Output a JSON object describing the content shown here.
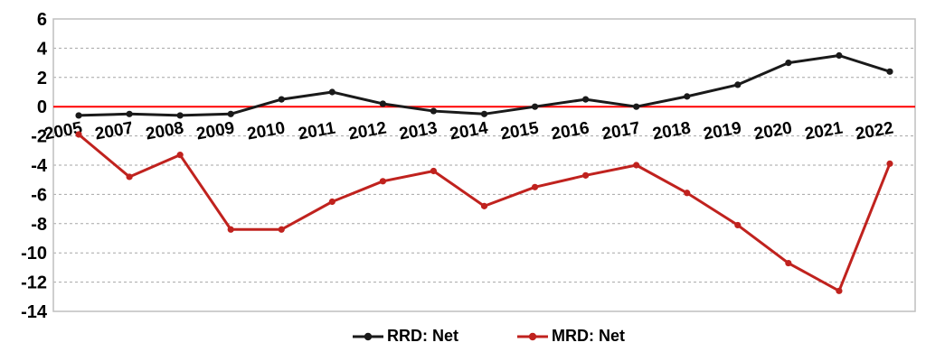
{
  "chart_data": {
    "type": "line",
    "title": "",
    "xlabel": "",
    "ylabel": "",
    "categories": [
      "2005",
      "2007",
      "2008",
      "2009",
      "2010",
      "2011",
      "2012",
      "2013",
      "2014",
      "2015",
      "2016",
      "2017",
      "2018",
      "2019",
      "2020",
      "2021",
      "2022"
    ],
    "series": [
      {
        "name": "RRD: Net",
        "color": "#1a1a1a",
        "values": [
          -0.6,
          -0.5,
          -0.6,
          -0.5,
          0.5,
          1.0,
          0.2,
          -0.3,
          -0.5,
          0.0,
          0.5,
          0.0,
          0.7,
          1.5,
          3.0,
          3.5,
          2.4
        ]
      },
      {
        "name": "MRD: Net",
        "color": "#c0221e",
        "values": [
          -1.9,
          -4.8,
          -3.3,
          -8.4,
          -8.4,
          -6.5,
          -5.1,
          -4.4,
          -6.8,
          -5.5,
          -4.7,
          -4.0,
          -5.9,
          -8.1,
          -10.7,
          -12.6,
          -3.9
        ]
      }
    ],
    "ylim": [
      -14,
      6
    ],
    "yticks": [
      6,
      4,
      2,
      0,
      -2,
      -4,
      -6,
      -8,
      -10,
      -12,
      -14
    ],
    "grid": "on",
    "gridline_color": "#a6a6a6",
    "frame_color": "#bfbfbf",
    "zero_line_color": "#ff0000",
    "axis_text_color": "#000000",
    "legend_position": "bottom"
  }
}
